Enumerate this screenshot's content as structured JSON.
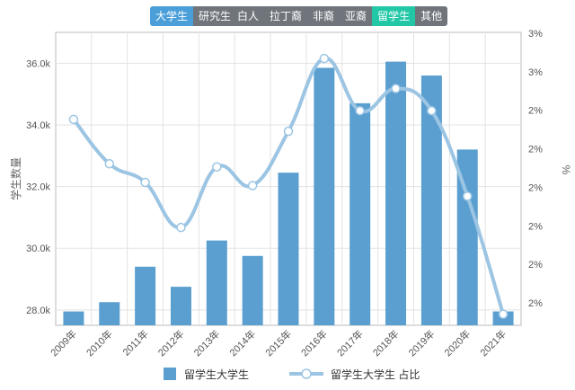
{
  "filters": {
    "level": [
      {
        "label": "大学生",
        "active": true
      },
      {
        "label": "研究生",
        "active": false
      }
    ],
    "race": [
      {
        "label": "白人",
        "active": false
      },
      {
        "label": "拉丁裔",
        "active": false
      },
      {
        "label": "非裔",
        "active": false
      },
      {
        "label": "亚裔",
        "active": false
      },
      {
        "label": "留学生",
        "active": true
      },
      {
        "label": "其他",
        "active": false
      }
    ]
  },
  "colors": {
    "bar": "#5b9fd0",
    "line": "#9cc5e3",
    "active_level": "#4a9fd9",
    "active_race": "#22c8a6",
    "inactive": "#6f757b"
  },
  "chart_data": {
    "type": "bar",
    "categories": [
      "2009年",
      "2010年",
      "2011年",
      "2012年",
      "2013年",
      "2014年",
      "2015年",
      "2016年",
      "2017年",
      "2018年",
      "2019年",
      "2020年",
      "2021年"
    ],
    "ylabel": "学生数量",
    "y2label": "%",
    "ylim": [
      27500,
      37000
    ],
    "yticks": [
      "28.0k",
      "30.0k",
      "32.0k",
      "34.0k",
      "36.0k"
    ],
    "y2ticks": [
      "2%",
      "2%",
      "2%",
      "2%",
      "2%",
      "2%",
      "3%",
      "3%"
    ],
    "grid": true,
    "legend_position": "bottom",
    "series": [
      {
        "name": "留学生大学生",
        "type": "bar",
        "values": [
          27950,
          28250,
          29400,
          28750,
          30250,
          29750,
          32450,
          35850,
          34700,
          36050,
          35600,
          33200,
          27950
        ]
      },
      {
        "name": "留学生大学生 占比",
        "type": "line",
        "values": [
          2.45,
          2.338,
          2.291,
          2.177,
          2.33,
          2.283,
          2.42,
          2.604,
          2.472,
          2.528,
          2.472,
          2.256,
          1.958
        ]
      }
    ]
  }
}
